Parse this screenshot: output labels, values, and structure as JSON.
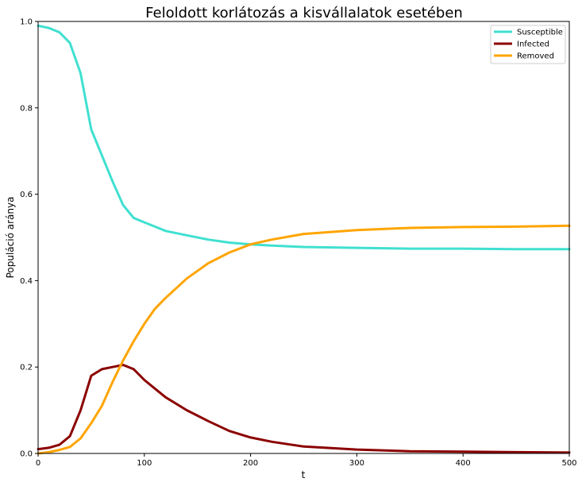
{
  "chart_data": {
    "type": "line",
    "title": "Feloldott korlátozás a kisvállalatok esetében",
    "xlabel": "t",
    "ylabel": "Populáció aránya",
    "xlim": [
      0,
      500
    ],
    "ylim": [
      0,
      1.0
    ],
    "xticks": [
      "0",
      "100",
      "200",
      "300",
      "400",
      "500"
    ],
    "yticks": [
      "0.0",
      "0.2",
      "0.4",
      "0.6",
      "0.8",
      "1.0"
    ],
    "grid": false,
    "legend_position": "top-right",
    "x": [
      0,
      10,
      20,
      30,
      40,
      50,
      60,
      70,
      80,
      90,
      100,
      110,
      120,
      140,
      160,
      180,
      200,
      220,
      250,
      300,
      350,
      400,
      450,
      500
    ],
    "series": [
      {
        "name": "Susceptible",
        "color": "#40e0d0",
        "values": [
          0.99,
          0.985,
          0.975,
          0.95,
          0.88,
          0.75,
          0.69,
          0.63,
          0.575,
          0.545,
          0.535,
          0.525,
          0.515,
          0.505,
          0.495,
          0.488,
          0.484,
          0.481,
          0.478,
          0.476,
          0.474,
          0.474,
          0.473,
          0.473
        ]
      },
      {
        "name": "Infected",
        "color": "#8b0000",
        "values": [
          0.01,
          0.013,
          0.02,
          0.04,
          0.1,
          0.18,
          0.195,
          0.2,
          0.205,
          0.195,
          0.17,
          0.15,
          0.13,
          0.1,
          0.075,
          0.052,
          0.037,
          0.027,
          0.016,
          0.009,
          0.005,
          0.004,
          0.003,
          0.002
        ]
      },
      {
        "name": "Removed",
        "color": "#ffa500",
        "values": [
          0.0,
          0.003,
          0.008,
          0.015,
          0.035,
          0.07,
          0.11,
          0.165,
          0.215,
          0.26,
          0.3,
          0.335,
          0.36,
          0.405,
          0.44,
          0.465,
          0.484,
          0.495,
          0.508,
          0.517,
          0.522,
          0.524,
          0.525,
          0.527
        ]
      }
    ]
  }
}
